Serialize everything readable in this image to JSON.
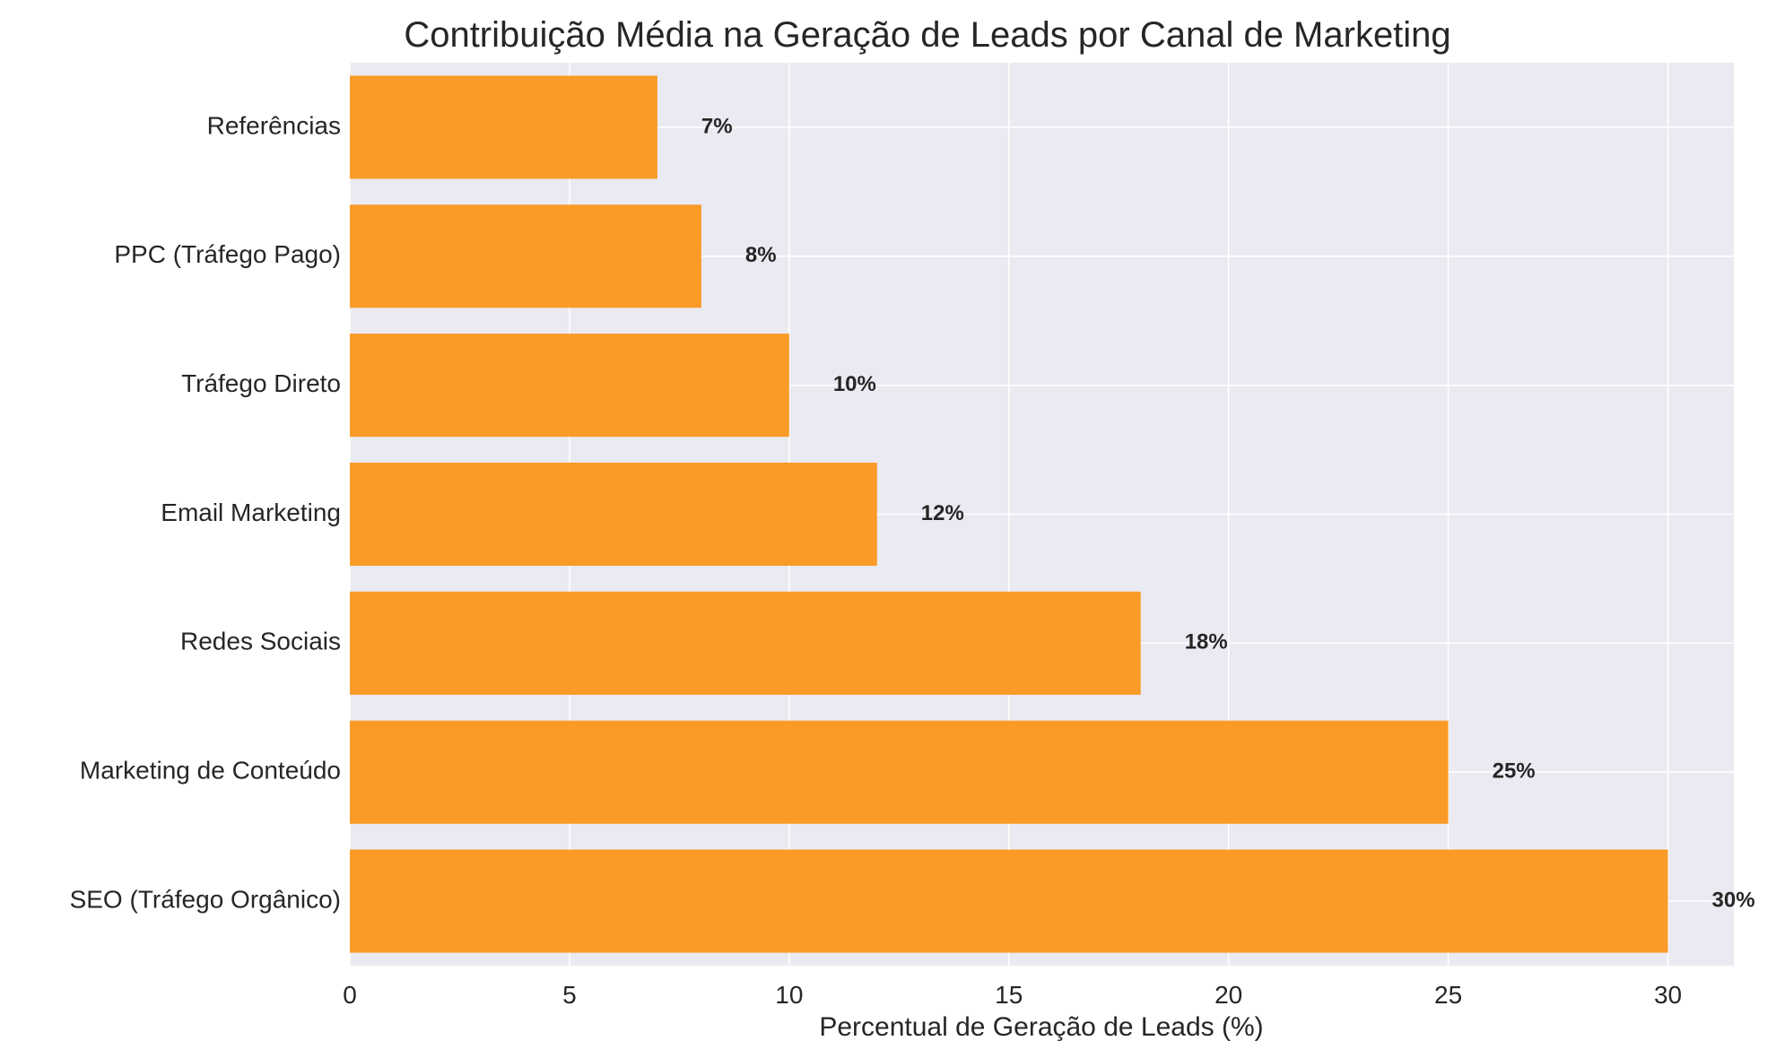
{
  "chart_data": {
    "type": "bar",
    "orientation": "horizontal",
    "title": "Contribuição Média na Geração de Leads por Canal de Marketing",
    "xlabel": "Percentual de Geração de Leads (%)",
    "ylabel": "",
    "categories": [
      "SEO (Tráfego Orgânico)",
      "Marketing de Conteúdo",
      "Redes Sociais",
      "Email Marketing",
      "Tráfego Direto",
      "PPC (Tráfego Pago)",
      "Referências"
    ],
    "values": [
      30,
      25,
      18,
      12,
      10,
      8,
      7
    ],
    "data_labels": [
      "30%",
      "25%",
      "18%",
      "12%",
      "10%",
      "8%",
      "7%"
    ],
    "xlim": [
      0,
      31.5
    ],
    "xticks": [
      0,
      5,
      10,
      15,
      20,
      25,
      30
    ],
    "xtick_labels": [
      "0",
      "5",
      "10",
      "15",
      "20",
      "25",
      "30"
    ],
    "grid": true,
    "colors": {
      "bar": "#FA9B28",
      "background": "#EAEAF2",
      "grid": "#FFFFFF",
      "text": "#262626"
    }
  }
}
